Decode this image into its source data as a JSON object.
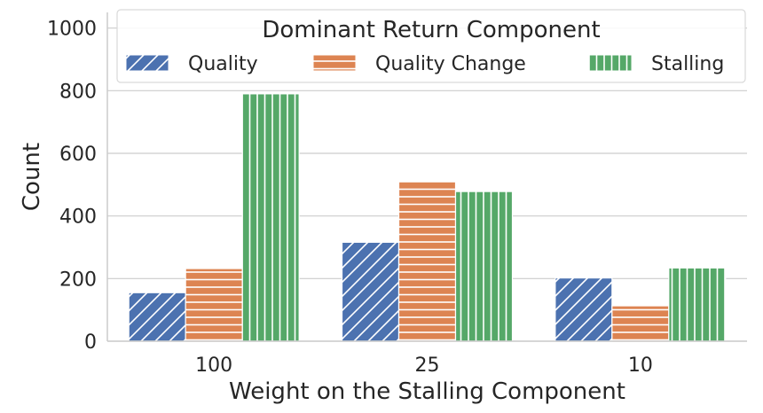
{
  "chart_data": {
    "type": "bar",
    "categories": [
      "100",
      "25",
      "10"
    ],
    "series": [
      {
        "name": "Quality",
        "values": [
          155,
          316,
          202
        ],
        "color": "#4c72b0",
        "pattern": "diagonal-hatch"
      },
      {
        "name": "Quality Change",
        "values": [
          232,
          510,
          113
        ],
        "color": "#dd8452",
        "pattern": "horizontal-hatch"
      },
      {
        "name": "Stalling",
        "values": [
          790,
          478,
          234
        ],
        "color": "#55a868",
        "pattern": "vertical-hatch"
      }
    ],
    "xlabel": "Weight on the Stalling Component",
    "ylabel": "Count",
    "ylim": [
      0,
      1050
    ],
    "yticks": [
      0,
      200,
      400,
      600,
      800,
      1000
    ],
    "grid": "horizontal",
    "legend": {
      "title": "Dominant Return Component",
      "placement": "top"
    }
  }
}
